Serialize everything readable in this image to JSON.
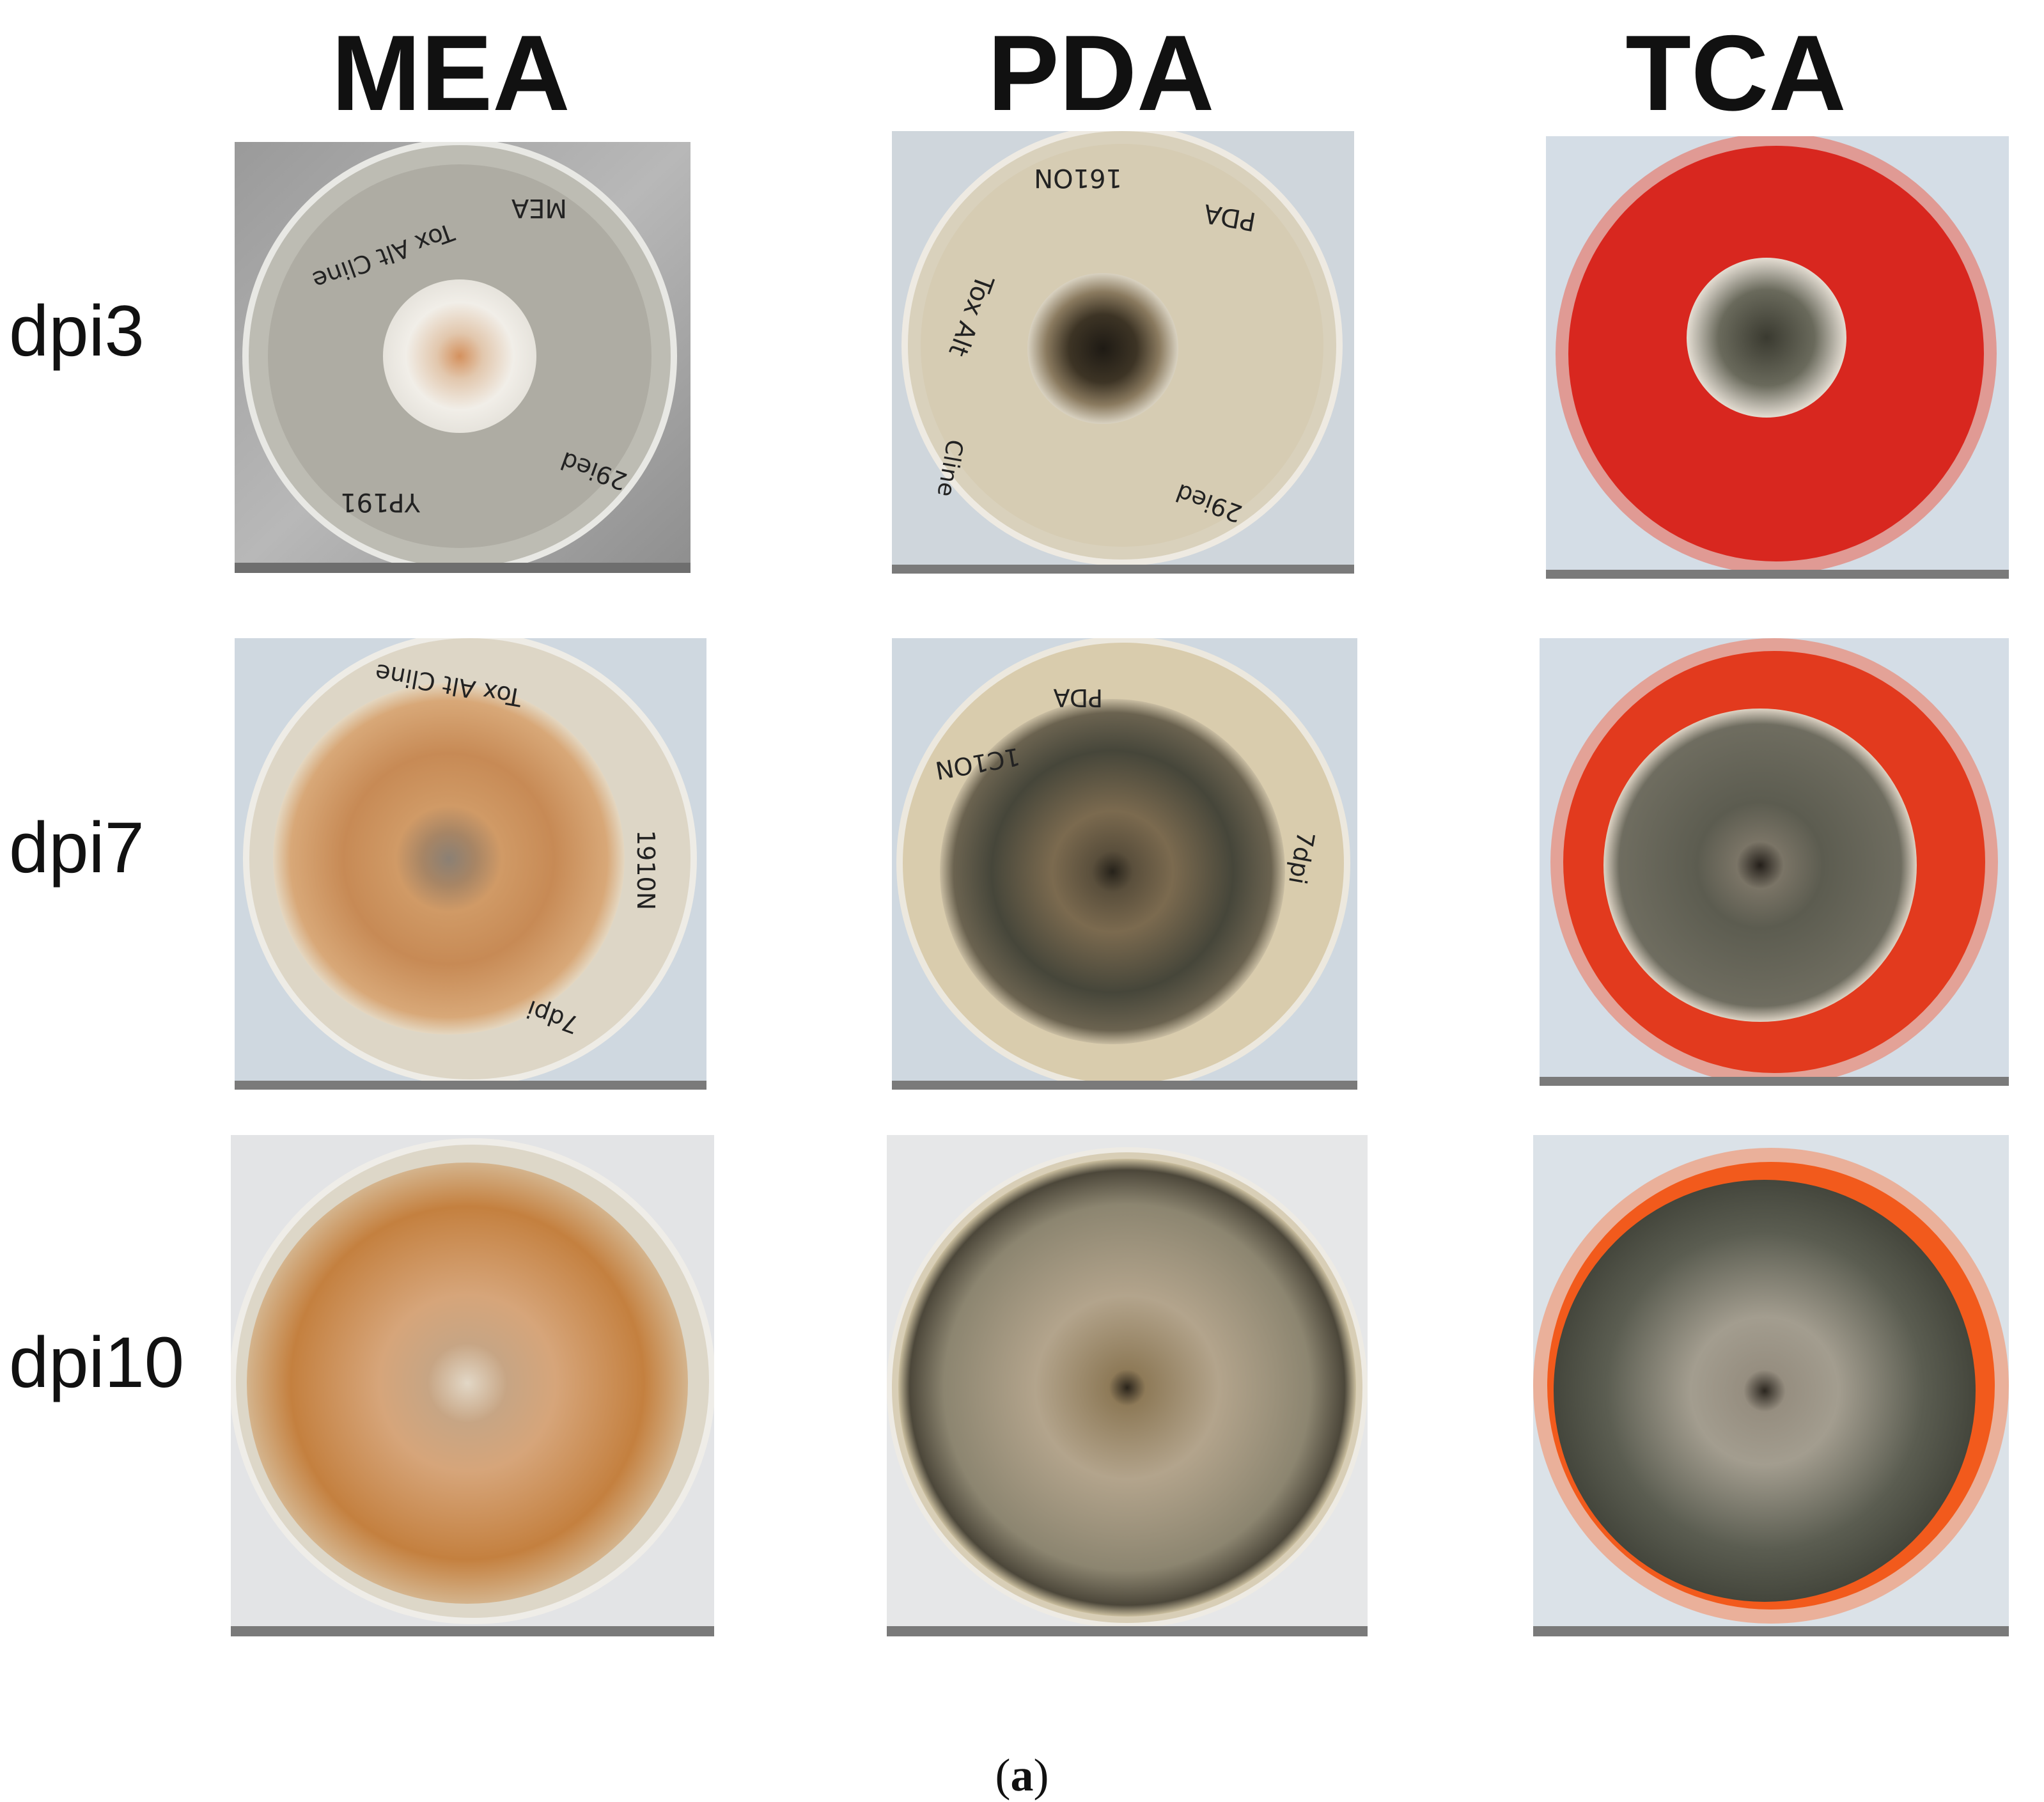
{
  "columns": [
    "MEA",
    "PDA",
    "TCA"
  ],
  "rows": [
    "dpi3",
    "dpi7",
    "dpi10"
  ],
  "plate_labels": {
    "mea_dpi3": [
      "MEA",
      "Tox Alt Cline",
      "YP191",
      "29ied"
    ],
    "pda_dpi3": [
      "PDA",
      "161ON",
      "Tox Alt",
      "29ied",
      "Cline"
    ],
    "mea_dpi7": [
      "Tox Alt Cline",
      "1910N",
      "7dpi"
    ],
    "pda_dpi7": [
      "PDA",
      "1C1ON",
      "7dpi"
    ]
  },
  "caption": {
    "open": "(",
    "letter": "a",
    "close": ")"
  },
  "colors": {
    "mea_colony": "#c98a55",
    "pda_colony": "#4a4536",
    "tca_agar": "#d8261f",
    "tca_colony": "#5a5a4e"
  }
}
